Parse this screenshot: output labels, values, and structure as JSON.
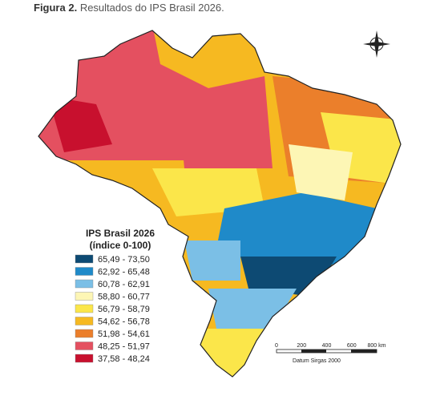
{
  "caption": {
    "label": "Figura 2.",
    "text": "Resultados do IPS Brasil 2026."
  },
  "legend": {
    "title": "IPS Brasil 2026",
    "subtitle": "(índice 0-100)",
    "classes": [
      {
        "label": "65,49 - 73,50",
        "color": "#0d4a73"
      },
      {
        "label": "62,92 - 65,48",
        "color": "#1f8ac9"
      },
      {
        "label": "60,78 - 62,91",
        "color": "#7bbfe6"
      },
      {
        "label": "58,80 - 60,77",
        "color": "#fdf6b5"
      },
      {
        "label": "56,79 - 58,79",
        "color": "#fbe64a"
      },
      {
        "label": "54,62 - 56,78",
        "color": "#f6b921"
      },
      {
        "label": "51,98 - 54,61",
        "color": "#eb7f2b"
      },
      {
        "label": "48,25 - 51,97",
        "color": "#e45060"
      },
      {
        "label": "37,58 - 48,24",
        "color": "#c8102e"
      }
    ]
  },
  "scale_bar": {
    "ticks": [
      "0",
      "200",
      "400",
      "600",
      "800 km"
    ],
    "datum": "Datum Sirgas 2000"
  }
}
